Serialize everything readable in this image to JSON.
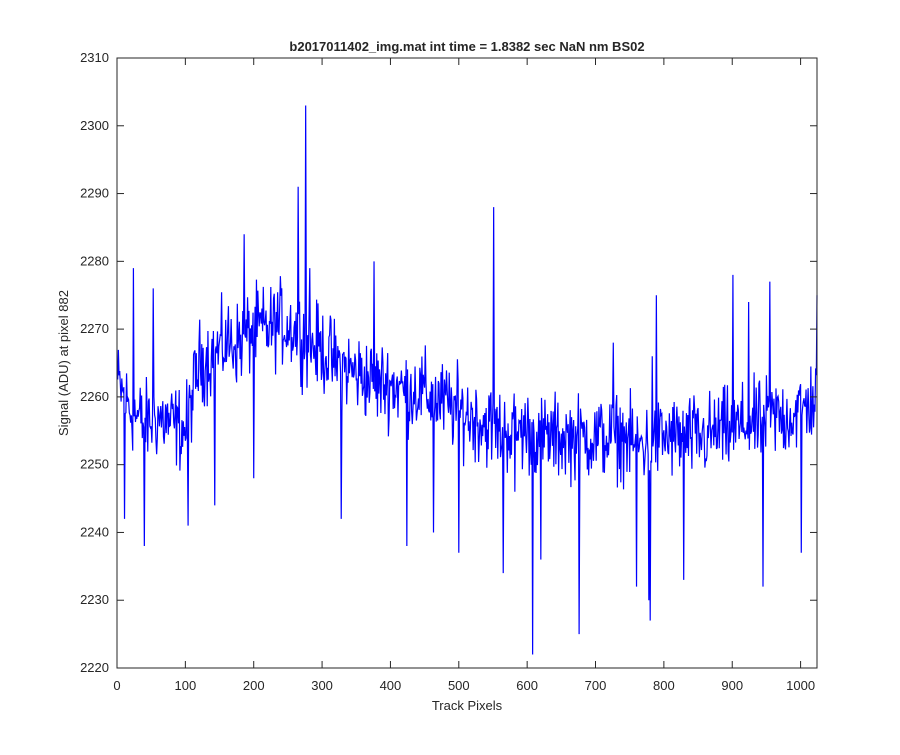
{
  "chart_data": {
    "type": "line",
    "title": "b2017011402_img.mat int time = 1.8382 sec  NaN nm BS02",
    "xlabel": "Track Pixels",
    "ylabel": "Signal (ADU) at pixel 882",
    "xlim": [
      0,
      1024
    ],
    "ylim": [
      2220,
      2310
    ],
    "xticks": [
      0,
      100,
      200,
      300,
      400,
      500,
      600,
      700,
      800,
      900,
      1000
    ],
    "yticks": [
      2220,
      2230,
      2240,
      2250,
      2260,
      2270,
      2280,
      2290,
      2300,
      2310
    ],
    "grid": false,
    "legend": "none",
    "series": [
      {
        "color": "#0000ff",
        "x_start": 1,
        "x_step": 1,
        "anchor_points": [
          [
            1,
            2262
          ],
          [
            20,
            2258
          ],
          [
            40,
            2256
          ],
          [
            60,
            2257
          ],
          [
            80,
            2256
          ],
          [
            100,
            2255
          ],
          [
            120,
            2265
          ],
          [
            140,
            2266
          ],
          [
            160,
            2268
          ],
          [
            180,
            2268
          ],
          [
            200,
            2270
          ],
          [
            220,
            2270
          ],
          [
            240,
            2271
          ],
          [
            260,
            2270
          ],
          [
            280,
            2268
          ],
          [
            300,
            2267
          ],
          [
            320,
            2265
          ],
          [
            340,
            2264
          ],
          [
            360,
            2263
          ],
          [
            380,
            2262
          ],
          [
            400,
            2262
          ],
          [
            420,
            2261
          ],
          [
            440,
            2261
          ],
          [
            460,
            2260
          ],
          [
            480,
            2259
          ],
          [
            500,
            2258
          ],
          [
            520,
            2257
          ],
          [
            540,
            2256
          ],
          [
            560,
            2255
          ],
          [
            580,
            2255
          ],
          [
            600,
            2255
          ],
          [
            620,
            2254
          ],
          [
            640,
            2254
          ],
          [
            660,
            2254
          ],
          [
            680,
            2254
          ],
          [
            700,
            2254
          ],
          [
            720,
            2254
          ],
          [
            740,
            2254
          ],
          [
            760,
            2253
          ],
          [
            780,
            2253
          ],
          [
            800,
            2254
          ],
          [
            820,
            2254
          ],
          [
            840,
            2254
          ],
          [
            860,
            2254
          ],
          [
            880,
            2255
          ],
          [
            900,
            2255
          ],
          [
            920,
            2256
          ],
          [
            940,
            2256
          ],
          [
            960,
            2257
          ],
          [
            980,
            2257
          ],
          [
            1000,
            2258
          ],
          [
            1024,
            2260
          ]
        ],
        "noise_amplitude": 6.5,
        "notable_points": [
          [
            11,
            2242
          ],
          [
            24,
            2279
          ],
          [
            40,
            2238
          ],
          [
            53,
            2276
          ],
          [
            104,
            2241
          ],
          [
            143,
            2244
          ],
          [
            186,
            2284
          ],
          [
            200,
            2248
          ],
          [
            265,
            2291
          ],
          [
            276,
            2303
          ],
          [
            282,
            2279
          ],
          [
            328,
            2242
          ],
          [
            376,
            2280
          ],
          [
            424,
            2238
          ],
          [
            463,
            2240
          ],
          [
            500,
            2237
          ],
          [
            551,
            2288
          ],
          [
            565,
            2234
          ],
          [
            582,
            2246
          ],
          [
            608,
            2222
          ],
          [
            620,
            2236
          ],
          [
            676,
            2225
          ],
          [
            726,
            2268
          ],
          [
            760,
            2232
          ],
          [
            778,
            2230
          ],
          [
            780,
            2227
          ],
          [
            783,
            2266
          ],
          [
            789,
            2275
          ],
          [
            829,
            2233
          ],
          [
            901,
            2278
          ],
          [
            924,
            2274
          ],
          [
            945,
            2232
          ],
          [
            955,
            2277
          ],
          [
            1001,
            2237
          ],
          [
            1024,
            2275
          ]
        ]
      }
    ]
  }
}
